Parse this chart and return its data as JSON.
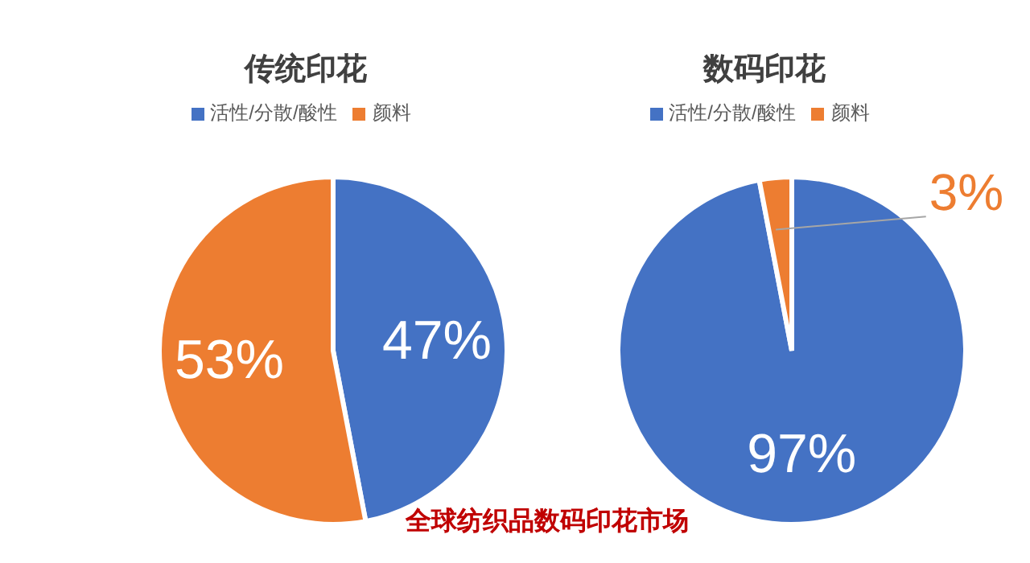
{
  "chart_data": [
    {
      "type": "pie",
      "title": "传统印花",
      "categories": [
        "活性/分散/酸性",
        "颜料"
      ],
      "values": [
        47,
        53
      ],
      "colors": [
        "#4472c4",
        "#ed7d31"
      ],
      "value_labels": [
        "47%",
        "53%"
      ],
      "legend": "top"
    },
    {
      "type": "pie",
      "title": "数码印花",
      "categories": [
        "活性/分散/酸性",
        "颜料"
      ],
      "values": [
        97,
        3
      ],
      "colors": [
        "#4472c4",
        "#ed7d31"
      ],
      "value_labels": [
        "97%",
        "3%"
      ],
      "legend": "top",
      "annotations": [
        "全球纺织品数码印花市场"
      ]
    }
  ]
}
